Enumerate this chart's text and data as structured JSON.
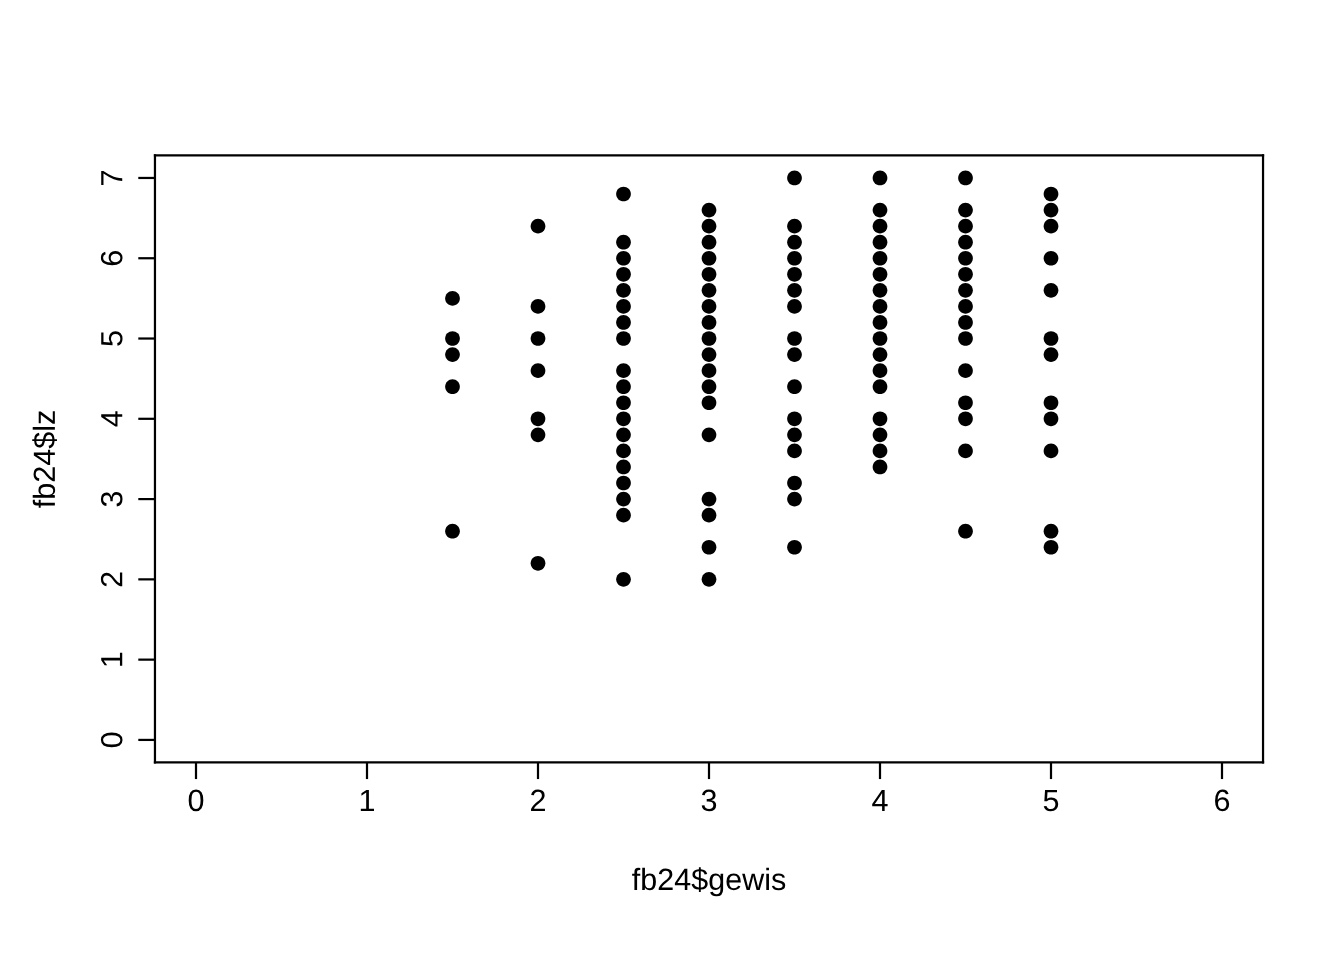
{
  "chart_data": {
    "type": "scatter",
    "xlabel": "fb24$gewis",
    "ylabel": "fb24$lz",
    "marker": "circle",
    "grid": false,
    "legend": false,
    "xlim": [
      -0.24,
      6.24
    ],
    "ylim": [
      -0.28,
      7.28
    ],
    "xticks": [
      0,
      1,
      2,
      3,
      4,
      5,
      6
    ],
    "yticks": [
      0,
      1,
      2,
      3,
      4,
      5,
      6,
      7
    ],
    "series": [
      {
        "color": "#000000",
        "x": [
          1.5,
          1.5,
          1.5,
          1.5,
          1.5,
          2,
          2,
          2,
          2,
          2,
          2,
          2,
          2.5,
          2.5,
          2.5,
          2.5,
          2.5,
          2.5,
          2.5,
          2.5,
          2.5,
          2.5,
          2.5,
          2.5,
          2.5,
          2.5,
          2.5,
          2.5,
          2.5,
          2.5,
          2.5,
          3,
          3,
          3,
          3,
          3,
          3,
          3,
          3,
          3,
          3,
          3,
          3,
          3,
          3,
          3,
          3,
          3,
          3,
          3.5,
          3.5,
          3.5,
          3.5,
          3.5,
          3.5,
          3.5,
          3.5,
          3.5,
          3.5,
          3.5,
          3.5,
          3.5,
          3.5,
          3.5,
          3.5,
          4,
          4,
          4,
          4,
          4,
          4,
          4,
          4,
          4,
          4,
          4,
          4,
          4,
          4,
          4,
          4,
          4,
          4.5,
          4.5,
          4.5,
          4.5,
          4.5,
          4.5,
          4.5,
          4.5,
          4.5,
          4.5,
          4.5,
          4.5,
          4.5,
          4.5,
          4.5,
          5,
          5,
          5,
          5,
          5,
          5,
          5,
          5,
          5,
          5,
          5,
          5
        ],
        "values": [
          5.5,
          5.0,
          4.8,
          4.4,
          2.6,
          6.4,
          5.4,
          5.0,
          4.6,
          4.0,
          3.8,
          2.2,
          6.8,
          6.2,
          6.0,
          5.8,
          5.6,
          5.4,
          5.2,
          5.0,
          4.6,
          4.4,
          4.2,
          4.0,
          3.8,
          3.6,
          3.4,
          3.2,
          3.0,
          2.8,
          2.0,
          6.6,
          6.4,
          6.2,
          6.0,
          5.8,
          5.6,
          5.4,
          5.2,
          5.0,
          4.8,
          4.6,
          4.4,
          4.2,
          3.8,
          3.0,
          2.8,
          2.4,
          2.0,
          7.0,
          6.4,
          6.2,
          6.0,
          5.8,
          5.6,
          5.4,
          5.0,
          4.8,
          4.4,
          4.0,
          3.8,
          3.6,
          3.2,
          3.0,
          2.4,
          7.0,
          6.6,
          6.4,
          6.2,
          6.0,
          5.8,
          5.6,
          5.4,
          5.2,
          5.0,
          4.8,
          4.6,
          4.4,
          4.0,
          3.8,
          3.6,
          3.4,
          7.0,
          6.6,
          6.4,
          6.2,
          6.0,
          5.8,
          5.6,
          5.4,
          5.2,
          5.0,
          4.6,
          4.2,
          4.0,
          3.6,
          2.6,
          6.8,
          6.6,
          6.4,
          6.0,
          5.6,
          5.0,
          4.8,
          4.2,
          4.0,
          3.6,
          2.6,
          2.4
        ]
      }
    ]
  }
}
